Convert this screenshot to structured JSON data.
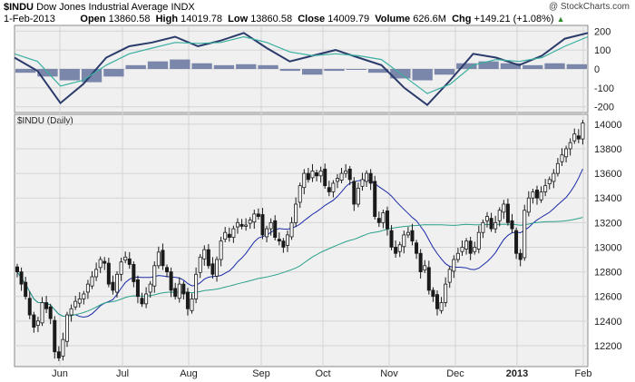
{
  "header": {
    "symbol": "$INDU",
    "name": "Dow Jones Industrial Average",
    "exchange": "INDX",
    "date": "1-Feb-2013",
    "open_label": "Open",
    "open": "13860.58",
    "high_label": "High",
    "high": "14019.78",
    "low_label": "Low",
    "low": "13860.58",
    "close_label": "Close",
    "close": "14009.79",
    "volume_label": "Volume",
    "volume": "626.6M",
    "chg_label": "Chg",
    "chg": "+149.21 (+1.08%)",
    "watermark": "@ StockCharts.com"
  },
  "colors": {
    "panel_bg": "#f0f0f0",
    "grid": "#d4d4d4",
    "candle": "#1a1a1a",
    "sma_short": "#1a2aa8",
    "sma_long": "#2aa08a",
    "macd_line": "#2a3a6a",
    "macd_signal": "#3ab0a0",
    "histogram": "#7a86aa",
    "up_arrow": "#2e8b2e"
  },
  "chart_data": [
    {
      "type": "line",
      "panel": "MACD-style oscillator (upper)",
      "title": "",
      "y_ticks": [
        200,
        100,
        0,
        -100,
        -200
      ],
      "ylim": [
        -230,
        230
      ],
      "series": [
        {
          "values_x": [
            0,
            0.04,
            0.08,
            0.12,
            0.16,
            0.2,
            0.24,
            0.28,
            0.32,
            0.36,
            0.4,
            0.44,
            0.48,
            0.52,
            0.56,
            0.6,
            0.64,
            0.68,
            0.72,
            0.76,
            0.8,
            0.84,
            0.88,
            0.92,
            0.96,
            1.0
          ],
          "values": [
            60,
            -10,
            -180,
            -80,
            60,
            120,
            140,
            170,
            120,
            150,
            190,
            110,
            40,
            70,
            100,
            60,
            20,
            -100,
            -190,
            -60,
            80,
            60,
            20,
            70,
            160,
            190
          ]
        },
        {
          "values_x": [
            0,
            0.04,
            0.08,
            0.12,
            0.16,
            0.2,
            0.24,
            0.28,
            0.32,
            0.36,
            0.4,
            0.44,
            0.48,
            0.52,
            0.56,
            0.6,
            0.64,
            0.68,
            0.72,
            0.76,
            0.8,
            0.84,
            0.88,
            0.92,
            0.96,
            1.0
          ],
          "values": [
            80,
            40,
            -90,
            -60,
            20,
            80,
            110,
            140,
            135,
            140,
            170,
            140,
            90,
            70,
            80,
            70,
            50,
            -40,
            -130,
            -80,
            20,
            50,
            40,
            60,
            120,
            170
          ]
        }
      ],
      "histogram": [
        -20,
        -40,
        -60,
        -70,
        -40,
        20,
        40,
        50,
        30,
        20,
        25,
        20,
        -10,
        -30,
        -10,
        0,
        -20,
        -50,
        -60,
        -30,
        30,
        40,
        30,
        20,
        30,
        25
      ]
    },
    {
      "type": "candlestick",
      "title": "$INDU (Daily)",
      "x_ticks": [
        "Jun",
        "Jul",
        "Aug",
        "Sep",
        "Oct",
        "Nov",
        "Dec",
        "2013",
        "Feb"
      ],
      "y_ticks": [
        14000,
        13800,
        13600,
        13400,
        13200,
        13000,
        12800,
        12600,
        12400,
        12200
      ],
      "ylim": [
        12030,
        14080
      ],
      "closes": [
        12800,
        12700,
        12600,
        12450,
        12350,
        12400,
        12550,
        12500,
        12420,
        12150,
        12100,
        12250,
        12450,
        12500,
        12560,
        12580,
        12620,
        12700,
        12760,
        12820,
        12900,
        12870,
        12700,
        12650,
        12780,
        12880,
        12920,
        12860,
        12720,
        12600,
        12540,
        12620,
        12700,
        12850,
        12960,
        12850,
        12800,
        12650,
        12600,
        12700,
        12620,
        12500,
        12580,
        12780,
        12920,
        12980,
        12850,
        12780,
        12900,
        13050,
        13120,
        13080,
        13150,
        13200,
        13170,
        13180,
        13220,
        13270,
        13250,
        13100,
        13150,
        13200,
        13080,
        13050,
        13000,
        13100,
        13200,
        13350,
        13500,
        13600,
        13550,
        13620,
        13580,
        13620,
        13500,
        13450,
        13520,
        13560,
        13600,
        13620,
        13550,
        13350,
        13480,
        13550,
        13600,
        13520,
        13250,
        13200,
        13280,
        13150,
        13000,
        12950,
        13020,
        13100,
        13120,
        13050,
        12950,
        12800,
        12850,
        12650,
        12600,
        12500,
        12550,
        12700,
        12820,
        12900,
        12950,
        13000,
        13050,
        12950,
        13000,
        13120,
        13200,
        13250,
        13150,
        13200,
        13300,
        13350,
        13200,
        13150,
        12950,
        12900,
        13300,
        13400,
        13450,
        13400,
        13450,
        13500,
        13550,
        13600,
        13680,
        13750,
        13800,
        13850,
        13920,
        13880,
        14009
      ]
    }
  ]
}
